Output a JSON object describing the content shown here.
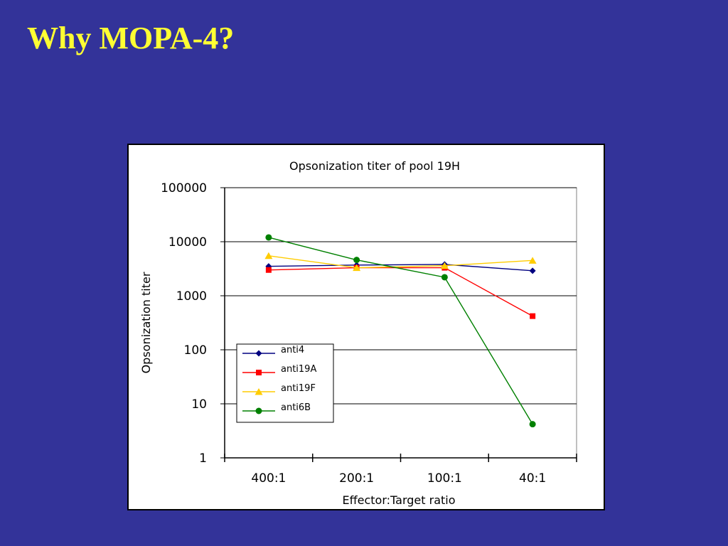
{
  "slide": {
    "title": "Why MOPA-4?"
  },
  "colors": {
    "background": "#333399",
    "title": "#FFFF33"
  },
  "chart_data": {
    "type": "line",
    "title": "Opsonization titer of pool 19H",
    "xlabel": "Effector:Target ratio",
    "ylabel": "Opsonization titer",
    "y_scale": "log",
    "ylim": [
      1,
      100000
    ],
    "yticks": [
      1,
      10,
      100,
      1000,
      10000,
      100000
    ],
    "ytick_labels": [
      "1",
      "10",
      "100",
      "1000",
      "10000",
      "100000"
    ],
    "categories": [
      "400:1",
      "200:1",
      "100:1",
      "40:1"
    ],
    "grid": "horizontal major",
    "legend_position": "lower-left",
    "series": [
      {
        "name": "anti4",
        "color": "#000080",
        "marker": "diamond",
        "values": [
          3500,
          3700,
          3800,
          2900
        ]
      },
      {
        "name": "anti19A",
        "color": "#FF0000",
        "marker": "square",
        "values": [
          3000,
          3300,
          3300,
          420
        ]
      },
      {
        "name": "anti19F",
        "color": "#FFCC00",
        "marker": "triangle",
        "values": [
          5500,
          3300,
          3600,
          4500
        ]
      },
      {
        "name": "anti6B",
        "color": "#008000",
        "marker": "circle",
        "values": [
          12000,
          4600,
          2200,
          4.2
        ]
      }
    ]
  }
}
